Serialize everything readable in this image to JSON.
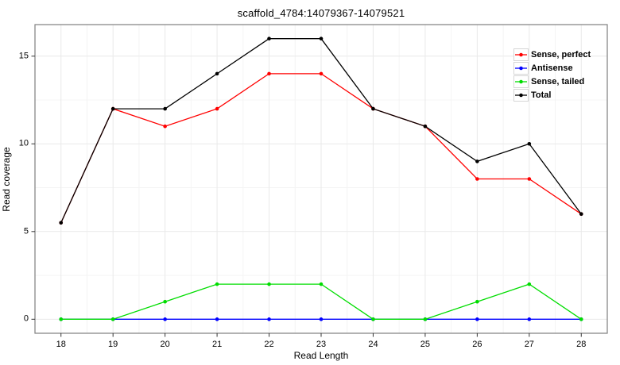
{
  "chart_data": {
    "type": "line",
    "title": "scaffold_4784:14079367-14079521",
    "xlabel": "Read Length",
    "ylabel": "Read coverage",
    "x": [
      18,
      19,
      20,
      21,
      22,
      23,
      24,
      25,
      26,
      27,
      28
    ],
    "series": [
      {
        "name": "Sense, perfect",
        "color": "#ff0000",
        "values": [
          5.5,
          12,
          11,
          12,
          14,
          14,
          12,
          11,
          8,
          8,
          6
        ]
      },
      {
        "name": "Antisense",
        "color": "#0000ff",
        "values": [
          0,
          0,
          0,
          0,
          0,
          0,
          0,
          0,
          0,
          0,
          0
        ]
      },
      {
        "name": "Sense, tailed",
        "color": "#00dd00",
        "values": [
          0,
          0,
          1,
          2,
          2,
          2,
          0,
          0,
          1,
          2,
          0
        ]
      },
      {
        "name": "Total",
        "color": "#000000",
        "values": [
          5.5,
          12,
          12,
          14,
          16,
          16,
          12,
          11,
          9,
          10,
          6
        ]
      }
    ],
    "y_ticks": [
      0,
      5,
      10,
      15
    ],
    "y_minor_ticks": [
      2.5,
      7.5,
      12.5
    ],
    "xlim": [
      17.5,
      28.5
    ],
    "ylim": [
      -0.8,
      16.8
    ],
    "grid": true,
    "legend_position": "top-right",
    "colors": {
      "panel_border": "#7f7f7f",
      "grid_major": "#e9e9e9",
      "grid_minor": "#f4f4f4",
      "tick": "#333333",
      "background": "#ffffff"
    }
  }
}
